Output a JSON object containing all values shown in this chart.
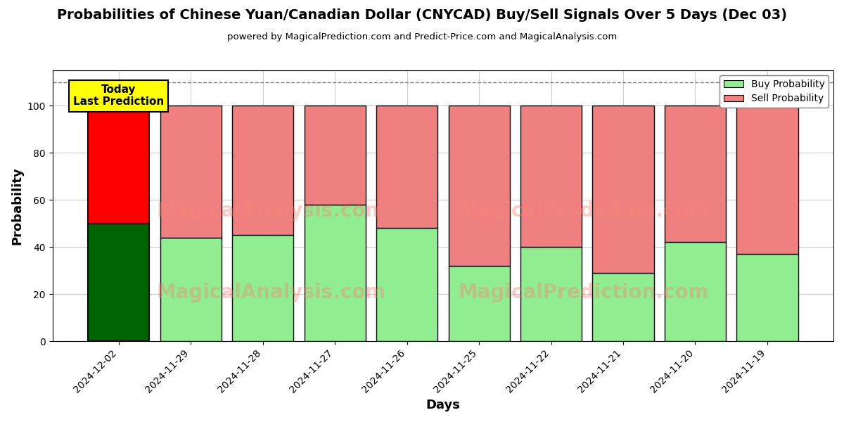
{
  "title": "Probabilities of Chinese Yuan/Canadian Dollar (CNYCAD) Buy/Sell Signals Over 5 Days (Dec 03)",
  "subtitle": "powered by MagicalPrediction.com and Predict-Price.com and MagicalAnalysis.com",
  "xlabel": "Days",
  "ylabel": "Probability",
  "categories": [
    "2024-12-02",
    "2024-11-29",
    "2024-11-28",
    "2024-11-27",
    "2024-11-26",
    "2024-11-25",
    "2024-11-22",
    "2024-11-21",
    "2024-11-20",
    "2024-11-19"
  ],
  "buy_values": [
    50,
    44,
    45,
    58,
    48,
    32,
    40,
    29,
    42,
    37
  ],
  "sell_values": [
    50,
    56,
    55,
    42,
    52,
    68,
    60,
    71,
    58,
    63
  ],
  "today_buy_color": "#006400",
  "today_sell_color": "#FF0000",
  "buy_color": "#90EE90",
  "sell_color": "#F08080",
  "bar_edgecolor": "black",
  "today_annotation_bg": "#FFFF00",
  "today_annotation_text": "Today\nLast Prediction",
  "dashed_line_y": 110,
  "ylim": [
    0,
    115
  ],
  "yticks": [
    0,
    20,
    40,
    60,
    80,
    100
  ],
  "grid_color": "#cccccc",
  "background_color": "#ffffff",
  "figsize": [
    12,
    6
  ],
  "dpi": 100,
  "bar_width": 0.85
}
